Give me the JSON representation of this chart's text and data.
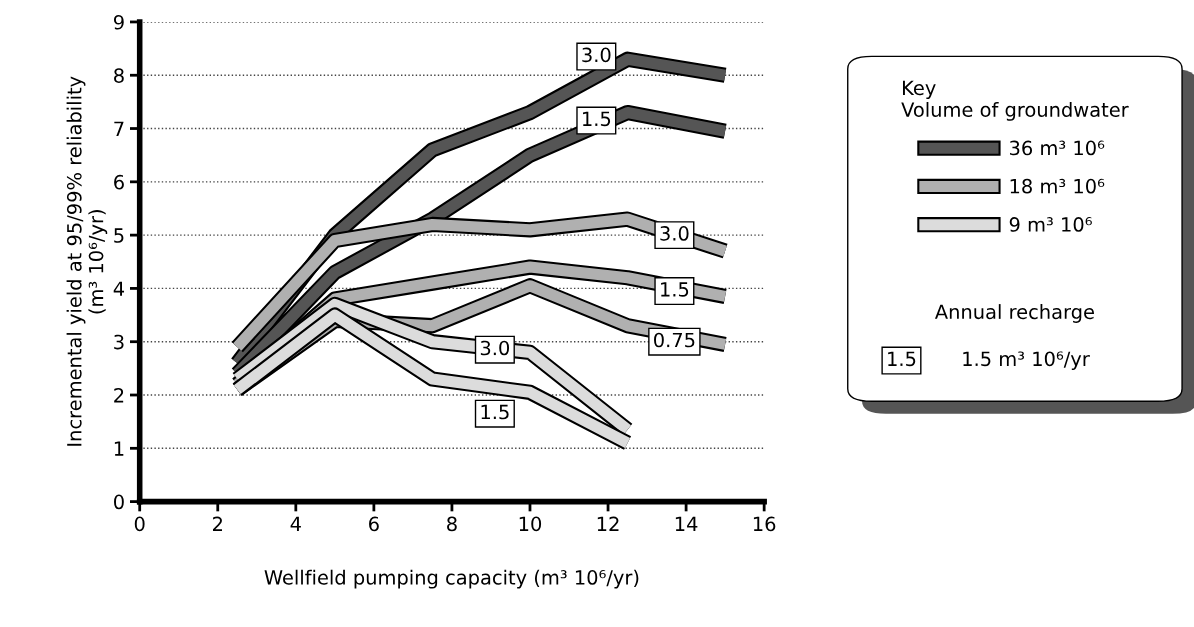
{
  "chart_data": {
    "type": "line",
    "xlabel": "Wellfield pumping capacity (m³ 10⁶/yr)",
    "ylabel": "Incremental yield at 95/99% reliability\n(m³ 10⁶/yr)",
    "legend_title": "Key\nVolume of groundwater",
    "legend": "right",
    "grid": "y",
    "line_style": "solid",
    "marker": "none",
    "xlim": [
      0,
      16
    ],
    "xticks": [
      0,
      2,
      4,
      6,
      8,
      10,
      12,
      14,
      16
    ],
    "ylim": [
      0,
      9
    ],
    "yticks": [
      0,
      1,
      2,
      3,
      4,
      5,
      6,
      7,
      8,
      9
    ],
    "series": [
      {
        "name": "36 m³ 10⁶",
        "color": "#555555",
        "x": [
          2.5,
          5,
          7.5,
          10,
          12.5,
          15
        ],
        "values": [
          2.6,
          5.0,
          6.6,
          7.3,
          8.3,
          8.0
        ]
      },
      {
        "color": "#555555",
        "x": [
          2.5,
          5,
          7.5,
          10,
          12.5,
          15
        ],
        "values": [
          2.4,
          4.3,
          5.3,
          6.5,
          7.3,
          6.95
        ]
      },
      {
        "name": "18 m³ 10⁶",
        "color": "#b0b0b0",
        "x": [
          2.5,
          5,
          7.5,
          10,
          12.5,
          15
        ],
        "values": [
          2.9,
          4.9,
          5.2,
          5.1,
          5.3,
          4.7
        ]
      },
      {
        "color": "#b0b0b0",
        "x": [
          2.5,
          5,
          7.5,
          10,
          12.5,
          15
        ],
        "values": [
          2.2,
          3.8,
          4.1,
          4.4,
          4.2,
          3.85
        ]
      },
      {
        "color": "#b0b0b0",
        "x": [
          2.5,
          5,
          7.5,
          10,
          12.5,
          15
        ],
        "values": [
          2.1,
          3.4,
          3.3,
          4.05,
          3.3,
          2.95
        ]
      },
      {
        "name": "9 m³ 10⁶",
        "color": "#dcdcdc",
        "x": [
          2.5,
          5,
          7.5,
          10,
          12.5
        ],
        "values": [
          2.3,
          3.7,
          3.0,
          2.8,
          1.35
        ]
      },
      {
        "color": "#dcdcdc",
        "x": [
          2.5,
          5,
          7.5,
          10,
          12.5
        ],
        "values": [
          2.1,
          3.5,
          2.3,
          2.05,
          1.1
        ]
      }
    ],
    "annotations": [
      {
        "text": "3.0",
        "x": 11.7,
        "y": 8.35
      },
      {
        "text": "1.5",
        "x": 11.7,
        "y": 7.15
      },
      {
        "text": "3.0",
        "x": 13.7,
        "y": 5.0
      },
      {
        "text": "1.5",
        "x": 13.7,
        "y": 3.95
      },
      {
        "text": "0.75",
        "x": 13.7,
        "y": 3.0
      },
      {
        "text": "3.0",
        "x": 9.1,
        "y": 2.85
      },
      {
        "text": "1.5",
        "x": 9.1,
        "y": 1.65
      },
      "Annual recharge",
      "1.5",
      "1.5 m³ 10⁶/yr"
    ]
  }
}
